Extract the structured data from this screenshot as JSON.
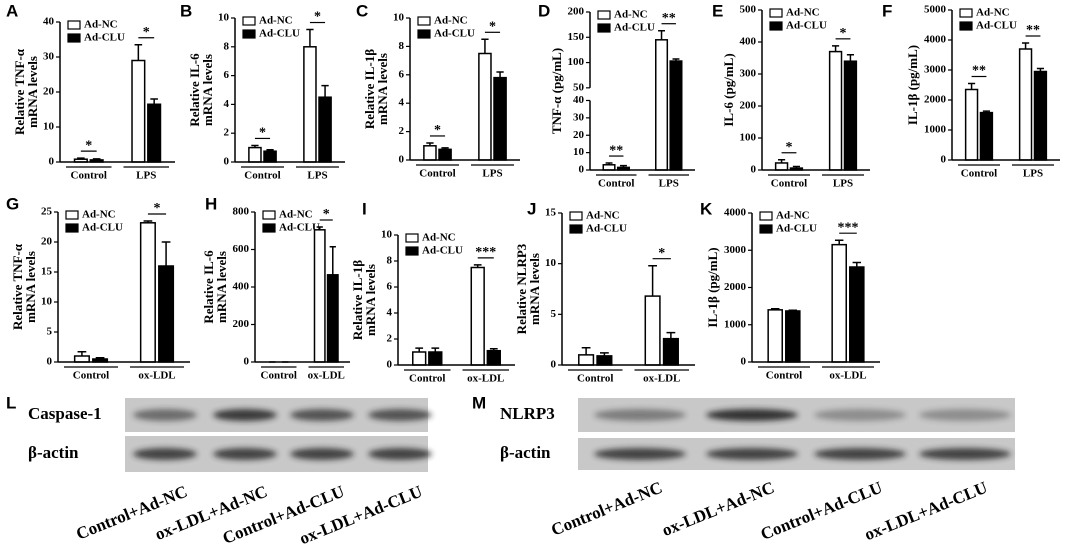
{
  "chart_data": [
    {
      "type": "bar",
      "panel": "A",
      "ylabel": [
        "Relative TNF-α",
        "mRNA levels"
      ],
      "categories": [
        "Control",
        "LPS"
      ],
      "ylim": [
        0,
        40
      ],
      "yticks": [
        0,
        10,
        20,
        30,
        40
      ],
      "legend": "upper left",
      "series": [
        {
          "name": "Ad-NC",
          "color": "#ffffff",
          "values": [
            0.8,
            29
          ],
          "errors": [
            0.3,
            4.5
          ]
        },
        {
          "name": "Ad-CLU",
          "color": "#000000",
          "values": [
            0.6,
            16.5
          ],
          "errors": [
            0.3,
            1.5
          ]
        }
      ],
      "significance": [
        "*",
        "*"
      ]
    },
    {
      "type": "bar",
      "panel": "B",
      "ylabel": [
        "Relative IL-6",
        "mRNA levels"
      ],
      "categories": [
        "Control",
        "LPS"
      ],
      "ylim": [
        0,
        10
      ],
      "yticks": [
        0,
        2,
        4,
        6,
        8,
        10
      ],
      "legend": "upper left",
      "series": [
        {
          "name": "Ad-NC",
          "color": "#ffffff",
          "values": [
            1.0,
            8.0
          ],
          "errors": [
            0.15,
            1.2
          ]
        },
        {
          "name": "Ad-CLU",
          "color": "#000000",
          "values": [
            0.75,
            4.5
          ],
          "errors": [
            0.1,
            0.8
          ]
        }
      ],
      "significance": [
        "*",
        "*"
      ]
    },
    {
      "type": "bar",
      "panel": "C",
      "ylabel": [
        "Relative IL-1β",
        "mRNA levels"
      ],
      "categories": [
        "Control",
        "LPS"
      ],
      "ylim": [
        0,
        10
      ],
      "yticks": [
        0,
        2,
        4,
        6,
        8,
        10
      ],
      "legend": "upper left",
      "series": [
        {
          "name": "Ad-NC",
          "color": "#ffffff",
          "values": [
            1.0,
            7.5
          ],
          "errors": [
            0.2,
            1.0
          ]
        },
        {
          "name": "Ad-CLU",
          "color": "#000000",
          "values": [
            0.75,
            5.8
          ],
          "errors": [
            0.1,
            0.4
          ]
        }
      ],
      "significance": [
        "*",
        "*"
      ]
    },
    {
      "type": "bar",
      "panel": "D",
      "ylabel": [
        "TNF-α (pg/mL)"
      ],
      "categories": [
        "Control",
        "LPS"
      ],
      "ylim": [
        0,
        200
      ],
      "ybreak": [
        40,
        50
      ],
      "yticks": [
        0,
        10,
        20,
        30,
        40,
        50,
        100,
        150,
        200
      ],
      "legend": "upper left",
      "series": [
        {
          "name": "Ad-NC",
          "color": "#ffffff",
          "values": [
            3,
            145
          ],
          "errors": [
            1,
            18
          ]
        },
        {
          "name": "Ad-CLU",
          "color": "#000000",
          "values": [
            1.5,
            103
          ],
          "errors": [
            1,
            4
          ]
        }
      ],
      "significance": [
        "**",
        "**"
      ]
    },
    {
      "type": "bar",
      "panel": "E",
      "ylabel": [
        "IL-6 (pg/mL)"
      ],
      "categories": [
        "Control",
        "LPS"
      ],
      "ylim": [
        0,
        500
      ],
      "yticks": [
        0,
        100,
        200,
        300,
        400,
        500
      ],
      "legend": "upper left",
      "series": [
        {
          "name": "Ad-NC",
          "color": "#ffffff",
          "values": [
            22,
            370
          ],
          "errors": [
            10,
            18
          ]
        },
        {
          "name": "Ad-CLU",
          "color": "#000000",
          "values": [
            6,
            340
          ],
          "errors": [
            5,
            20
          ]
        }
      ],
      "significance": [
        "*",
        "*"
      ]
    },
    {
      "type": "bar",
      "panel": "F",
      "ylabel": [
        "IL-1β (pg/mL)"
      ],
      "categories": [
        "Control",
        "LPS"
      ],
      "ylim": [
        0,
        5000
      ],
      "yticks": [
        0,
        1000,
        2000,
        3000,
        4000,
        5000
      ],
      "legend": "upper left",
      "series": [
        {
          "name": "Ad-NC",
          "color": "#ffffff",
          "values": [
            2350,
            3700
          ],
          "errors": [
            200,
            200
          ]
        },
        {
          "name": "Ad-CLU",
          "color": "#000000",
          "values": [
            1580,
            2950
          ],
          "errors": [
            50,
            100
          ]
        }
      ],
      "significance": [
        "**",
        "**"
      ]
    },
    {
      "type": "bar",
      "panel": "G",
      "ylabel": [
        "Relative TNF-α",
        "mRNA levels"
      ],
      "categories": [
        "Control",
        "ox-LDL"
      ],
      "ylim": [
        0,
        25
      ],
      "yticks": [
        0,
        5,
        10,
        15,
        20,
        25
      ],
      "legend": "upper left",
      "series": [
        {
          "name": "Ad-NC",
          "color": "#ffffff",
          "values": [
            1.0,
            23.2
          ],
          "errors": [
            0.7,
            0.3
          ]
        },
        {
          "name": "Ad-CLU",
          "color": "#000000",
          "values": [
            0.5,
            16
          ],
          "errors": [
            0.2,
            4
          ]
        }
      ],
      "significance": [
        null,
        "*"
      ]
    },
    {
      "type": "bar",
      "panel": "H",
      "ylabel": [
        "Relative IL-6",
        "mRNA levels"
      ],
      "categories": [
        "Control",
        "ox-LDL"
      ],
      "ylim": [
        0,
        800
      ],
      "yticks": [
        0,
        200,
        400,
        600,
        800
      ],
      "legend": "upper left",
      "series": [
        {
          "name": "Ad-NC",
          "color": "#ffffff",
          "values": [
            0,
            705
          ],
          "errors": [
            0,
            15
          ]
        },
        {
          "name": "Ad-CLU",
          "color": "#000000",
          "values": [
            0,
            465
          ],
          "errors": [
            0,
            150
          ]
        }
      ],
      "significance": [
        null,
        "*"
      ]
    },
    {
      "type": "bar",
      "panel": "I",
      "ylabel": [
        "Relative IL-1β",
        "mRNA levels"
      ],
      "categories": [
        "Control",
        "ox-LDL"
      ],
      "ylim": [
        0,
        10
      ],
      "yticks": [
        0,
        2,
        4,
        6,
        8,
        10
      ],
      "legend": "upper left",
      "series": [
        {
          "name": "Ad-NC",
          "color": "#ffffff",
          "values": [
            1.0,
            7.5
          ],
          "errors": [
            0.3,
            0.2
          ]
        },
        {
          "name": "Ad-CLU",
          "color": "#000000",
          "values": [
            1.0,
            1.1
          ],
          "errors": [
            0.3,
            0.15
          ]
        }
      ],
      "significance": [
        null,
        "***"
      ]
    },
    {
      "type": "bar",
      "panel": "J",
      "ylabel": [
        "Relative NLRP3",
        "mRNA levels"
      ],
      "categories": [
        "Control",
        "ox-LDL"
      ],
      "ylim": [
        0,
        15
      ],
      "yticks": [
        0,
        5,
        10,
        15
      ],
      "legend": "upper left",
      "series": [
        {
          "name": "Ad-NC",
          "color": "#ffffff",
          "values": [
            1.0,
            6.8
          ],
          "errors": [
            0.7,
            3
          ]
        },
        {
          "name": "Ad-CLU",
          "color": "#000000",
          "values": [
            0.9,
            2.6
          ],
          "errors": [
            0.3,
            0.6
          ]
        }
      ],
      "significance": [
        null,
        "*"
      ]
    },
    {
      "type": "bar",
      "panel": "K",
      "ylabel": [
        "IL-1β (pg/mL)"
      ],
      "categories": [
        "Control",
        "ox-LDL"
      ],
      "ylim": [
        0,
        4000
      ],
      "yticks": [
        0,
        1000,
        2000,
        3000,
        4000
      ],
      "legend": "upper left",
      "series": [
        {
          "name": "Ad-NC",
          "color": "#ffffff",
          "values": [
            1400,
            3150
          ],
          "errors": [
            30,
            120
          ]
        },
        {
          "name": "Ad-CLU",
          "color": "#000000",
          "values": [
            1370,
            2550
          ],
          "errors": [
            20,
            120
          ]
        }
      ],
      "significance": [
        null,
        "***"
      ]
    }
  ],
  "blots": [
    {
      "panel": "L",
      "rows": [
        "Caspase-1",
        "β-actin"
      ],
      "lanes": [
        "Control+Ad-NC",
        "ox-LDL+Ad-NC",
        "Control+Ad-CLU",
        "ox-LDL+Ad-CLU"
      ]
    },
    {
      "panel": "M",
      "rows": [
        "NLRP3",
        "β-actin"
      ],
      "lanes": [
        "Control+Ad-NC",
        "ox-LDL+Ad-NC",
        "Control+Ad-CLU",
        "ox-LDL+Ad-CLU"
      ]
    }
  ]
}
